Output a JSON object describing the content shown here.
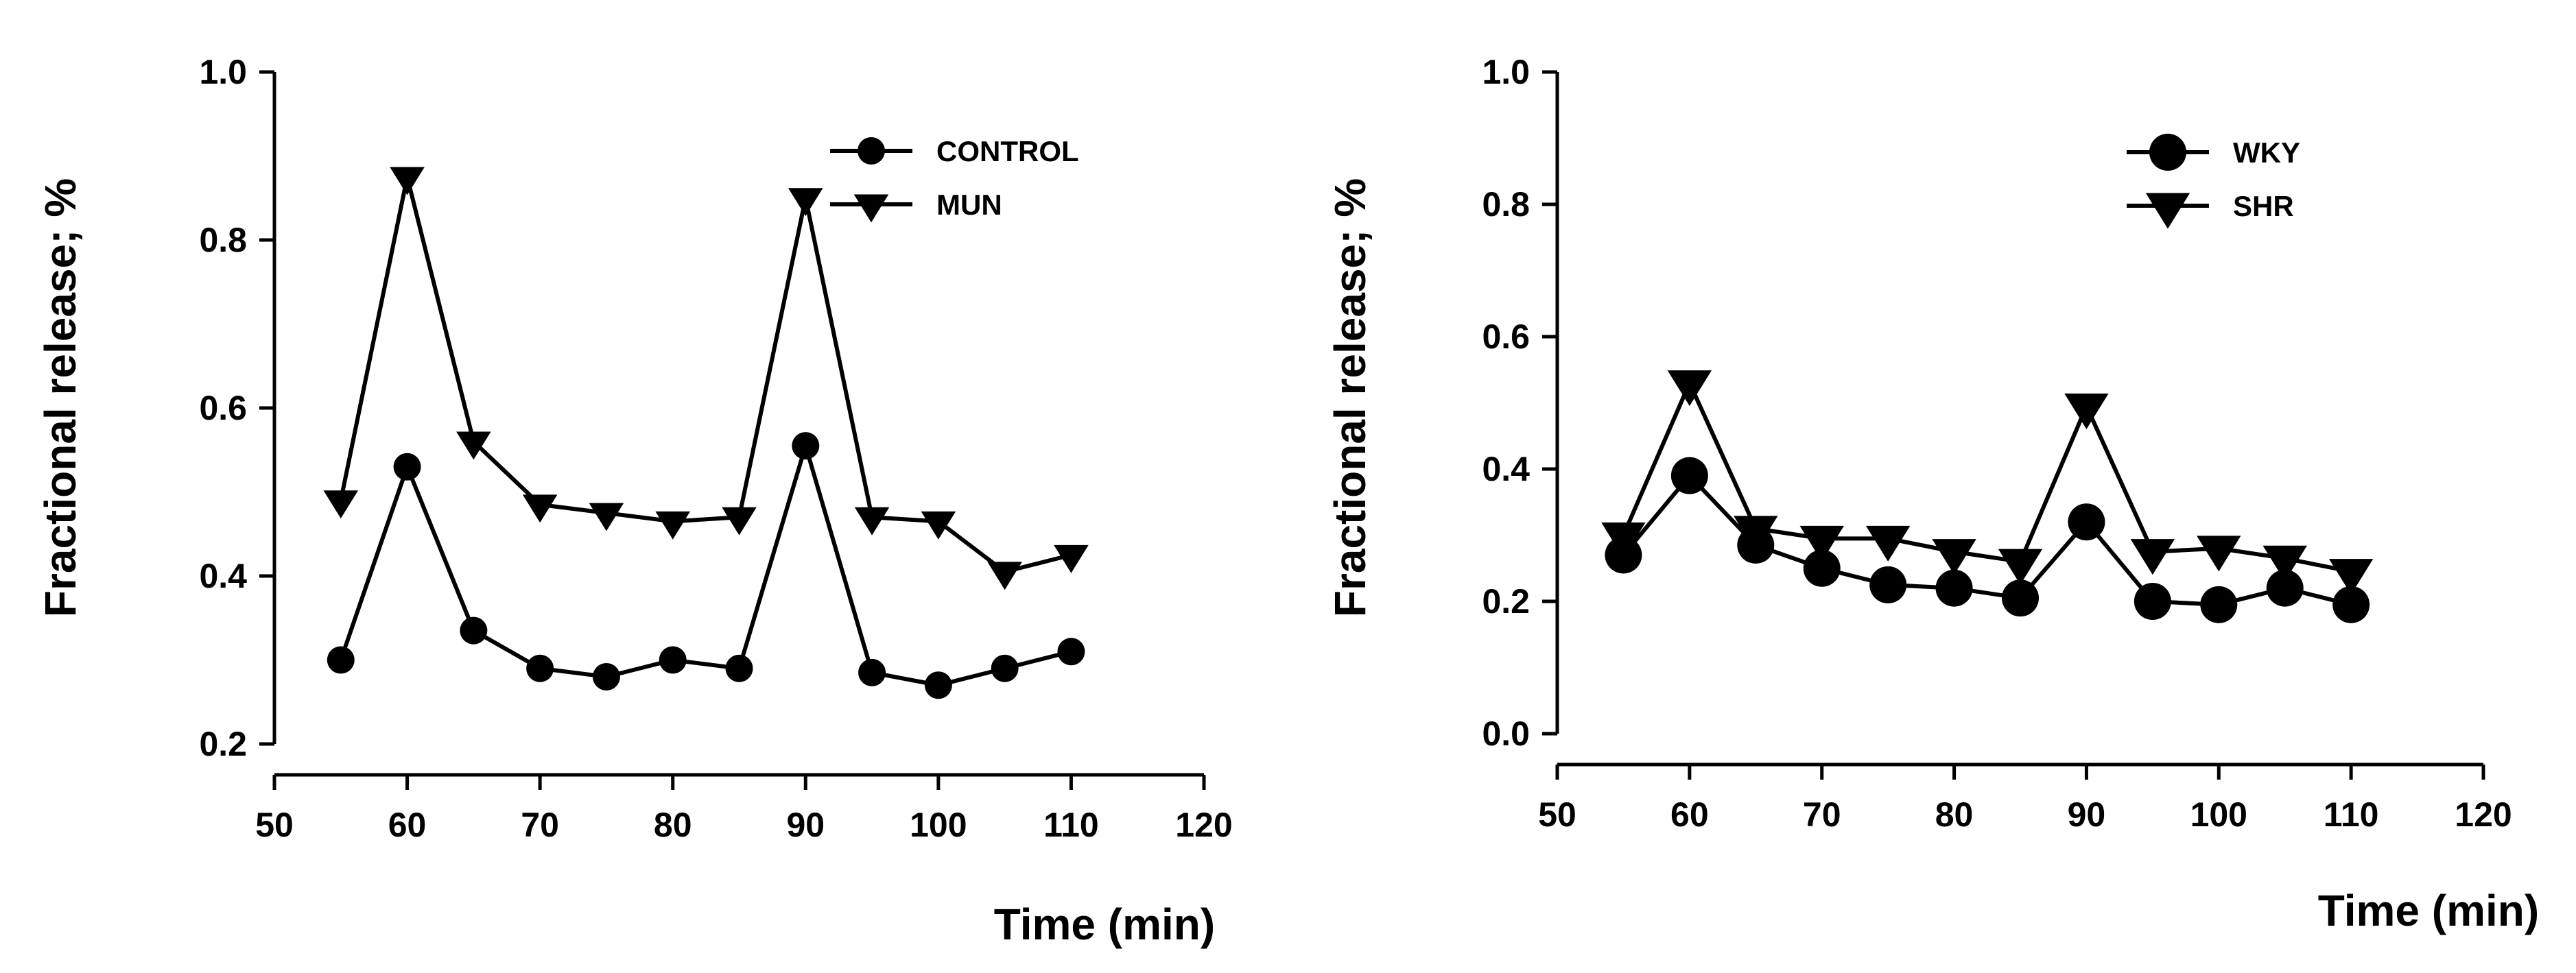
{
  "chart_data": [
    {
      "type": "line",
      "id": "left",
      "xlabel": "Time (min)",
      "ylabel": "Fractional release; %",
      "xlim": [
        50,
        120
      ],
      "ylim": [
        0.2,
        1.0
      ],
      "xticks": [
        "50",
        "60",
        "70",
        "80",
        "90",
        "100",
        "110",
        "120"
      ],
      "yticks": [
        "0.2",
        "0.4",
        "0.6",
        "0.8",
        "1.0"
      ],
      "legend": {
        "placement": "top-right"
      },
      "x": [
        55,
        60,
        65,
        70,
        75,
        80,
        85,
        90,
        95,
        100,
        105,
        110
      ],
      "series": [
        {
          "name": "CONTROL",
          "marker": "circle",
          "values": [
            0.3,
            0.53,
            0.335,
            0.29,
            0.28,
            0.3,
            0.29,
            0.555,
            0.285,
            0.27,
            0.29,
            0.31
          ]
        },
        {
          "name": "MUN",
          "marker": "triangle-down",
          "values": [
            0.49,
            0.875,
            0.56,
            0.485,
            0.475,
            0.465,
            0.47,
            0.85,
            0.47,
            0.465,
            0.405,
            0.425
          ]
        }
      ]
    },
    {
      "type": "line",
      "id": "right",
      "xlabel": "Time (min)",
      "ylabel": "Fractional release; %",
      "xlim": [
        50,
        120
      ],
      "ylim": [
        0.0,
        1.0
      ],
      "xticks": [
        "50",
        "60",
        "70",
        "80",
        "90",
        "100",
        "110",
        "120"
      ],
      "yticks": [
        "0.0",
        "0.2",
        "0.4",
        "0.6",
        "0.8",
        "1.0"
      ],
      "legend": {
        "placement": "top-right"
      },
      "x": [
        55,
        60,
        65,
        70,
        75,
        80,
        85,
        90,
        95,
        100,
        105,
        110
      ],
      "series": [
        {
          "name": "WKY",
          "marker": "circle",
          "values": [
            0.27,
            0.39,
            0.285,
            0.25,
            0.225,
            0.22,
            0.205,
            0.32,
            0.2,
            0.195,
            0.22,
            0.195
          ]
        },
        {
          "name": "SHR",
          "marker": "triangle-down",
          "values": [
            0.3,
            0.53,
            0.31,
            0.295,
            0.295,
            0.275,
            0.26,
            0.495,
            0.275,
            0.28,
            0.265,
            0.245
          ]
        }
      ]
    }
  ]
}
